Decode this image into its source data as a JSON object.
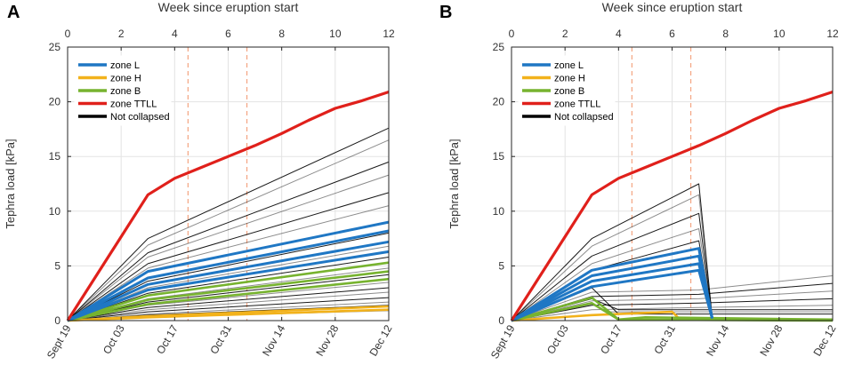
{
  "chart_data": [
    {
      "panel": "A",
      "type": "line",
      "top_axis_title": "Week since eruption start",
      "top_ticks": [
        "0",
        "2",
        "4",
        "6",
        "8",
        "10",
        "12"
      ],
      "top_tick_values": [
        0,
        2,
        4,
        6,
        8,
        10,
        12
      ],
      "xlim": [
        0,
        12
      ],
      "ylim": [
        0,
        25
      ],
      "y_ticks": [
        "0",
        "5",
        "10",
        "15",
        "20",
        "25"
      ],
      "y_tick_values": [
        0,
        5,
        10,
        15,
        20,
        25
      ],
      "ylabel": "Tephra load [kPa]",
      "date_ticks": [
        "Sept 19",
        "Oct 03",
        "Oct 17",
        "Oct 31",
        "Nov 14",
        "Nov 28",
        "Dec 12"
      ],
      "date_tick_values": [
        0,
        2,
        4,
        6,
        8,
        10,
        12
      ],
      "vlines": [
        4.5,
        6.7
      ],
      "legend": [
        "zone L",
        "zone H",
        "zone B",
        "zone TTLL",
        "Not collapsed"
      ],
      "colors": {
        "zone L": "#1f77c4",
        "zone H": "#f2b21b",
        "zone B": "#77b32f",
        "zone TTLL": "#e0201b",
        "Not collapsed": "#000000",
        "vline": "#f4a582"
      },
      "series": [
        {
          "name": "zone TTLL",
          "x": [
            0,
            3,
            4,
            5,
            6,
            7,
            8,
            9,
            10,
            11,
            12
          ],
          "y": [
            0,
            11.5,
            13.0,
            14.0,
            15.0,
            16.0,
            17.1,
            18.3,
            19.4,
            20.1,
            20.9
          ]
        },
        {
          "name": "zone L",
          "x": [
            0,
            3,
            12
          ],
          "y": [
            0,
            4.5,
            9.0
          ]
        },
        {
          "name": "zone L",
          "x": [
            0,
            3,
            12
          ],
          "y": [
            0,
            3.9,
            8.2
          ]
        },
        {
          "name": "zone L",
          "x": [
            0,
            3,
            12
          ],
          "y": [
            0,
            3.3,
            7.2
          ]
        },
        {
          "name": "zone L",
          "x": [
            0,
            3,
            12
          ],
          "y": [
            0,
            2.8,
            6.3
          ]
        },
        {
          "name": "zone B",
          "x": [
            0,
            3,
            12
          ],
          "y": [
            0,
            2.3,
            5.3
          ]
        },
        {
          "name": "zone B",
          "x": [
            0,
            3,
            12
          ],
          "y": [
            0,
            1.9,
            4.5
          ]
        },
        {
          "name": "zone B",
          "x": [
            0,
            3,
            12
          ],
          "y": [
            0,
            1.5,
            3.8
          ]
        },
        {
          "name": "zone H",
          "x": [
            0,
            3,
            12
          ],
          "y": [
            0,
            0.4,
            1.3
          ]
        },
        {
          "name": "zone H",
          "x": [
            0,
            3,
            12
          ],
          "y": [
            0,
            0.3,
            1.0
          ]
        },
        {
          "name": "Not collapsed",
          "x": [
            0,
            3,
            12
          ],
          "y": [
            0,
            7.5,
            17.6
          ]
        },
        {
          "name": "Not collapsed",
          "x": [
            0,
            3,
            12
          ],
          "y": [
            0,
            6.9,
            16.5
          ]
        },
        {
          "name": "Not collapsed",
          "x": [
            0,
            3,
            12
          ],
          "y": [
            0,
            6.2,
            14.5
          ]
        },
        {
          "name": "Not collapsed",
          "x": [
            0,
            3,
            12
          ],
          "y": [
            0,
            5.8,
            13.3
          ]
        },
        {
          "name": "Not collapsed",
          "x": [
            0,
            3,
            12
          ],
          "y": [
            0,
            5.2,
            11.7
          ]
        },
        {
          "name": "Not collapsed",
          "x": [
            0,
            3,
            12
          ],
          "y": [
            0,
            4.8,
            10.5
          ]
        },
        {
          "name": "Not collapsed",
          "x": [
            0,
            3,
            12
          ],
          "y": [
            0,
            3.6,
            8.0
          ]
        },
        {
          "name": "Not collapsed",
          "x": [
            0,
            3,
            12
          ],
          "y": [
            0,
            3.0,
            6.8
          ]
        },
        {
          "name": "Not collapsed",
          "x": [
            0,
            3,
            12
          ],
          "y": [
            0,
            2.5,
            5.8
          ]
        },
        {
          "name": "Not collapsed",
          "x": [
            0,
            3,
            12
          ],
          "y": [
            0,
            2.0,
            4.8
          ]
        },
        {
          "name": "Not collapsed",
          "x": [
            0,
            3,
            12
          ],
          "y": [
            0,
            1.7,
            4.2
          ]
        },
        {
          "name": "Not collapsed",
          "x": [
            0,
            3,
            12
          ],
          "y": [
            0,
            1.4,
            3.5
          ]
        },
        {
          "name": "Not collapsed",
          "x": [
            0,
            3,
            12
          ],
          "y": [
            0,
            1.2,
            3.0
          ]
        },
        {
          "name": "Not collapsed",
          "x": [
            0,
            3,
            12
          ],
          "y": [
            0,
            1.0,
            2.6
          ]
        },
        {
          "name": "Not collapsed",
          "x": [
            0,
            3,
            12
          ],
          "y": [
            0,
            0.8,
            2.1
          ]
        },
        {
          "name": "Not collapsed",
          "x": [
            0,
            3,
            12
          ],
          "y": [
            0,
            0.6,
            1.7
          ]
        },
        {
          "name": "Not collapsed",
          "x": [
            0,
            3,
            12
          ],
          "y": [
            0,
            0.5,
            1.4
          ]
        },
        {
          "name": "Not collapsed",
          "x": [
            0,
            3,
            12
          ],
          "y": [
            0,
            0.3,
            0.9
          ]
        }
      ]
    },
    {
      "panel": "B",
      "type": "line",
      "top_axis_title": "Week since eruption start",
      "top_ticks": [
        "0",
        "2",
        "4",
        "6",
        "8",
        "10",
        "12"
      ],
      "top_tick_values": [
        0,
        2,
        4,
        6,
        8,
        10,
        12
      ],
      "xlim": [
        0,
        12
      ],
      "ylim": [
        0,
        25
      ],
      "y_ticks": [
        "0",
        "5",
        "10",
        "15",
        "20",
        "25"
      ],
      "y_tick_values": [
        0,
        5,
        10,
        15,
        20,
        25
      ],
      "ylabel": "Tephra load [kPa]",
      "date_ticks": [
        "Sept 19",
        "Oct 03",
        "Oct 17",
        "Oct 31",
        "Nov 14",
        "Nov 28",
        "Dec 12"
      ],
      "date_tick_values": [
        0,
        2,
        4,
        6,
        8,
        10,
        12
      ],
      "vlines": [
        4.5,
        6.7
      ],
      "legend": [
        "zone L",
        "zone H",
        "zone B",
        "zone TTLL",
        "Not collapsed"
      ],
      "colors": {
        "zone L": "#1f77c4",
        "zone H": "#f2b21b",
        "zone B": "#77b32f",
        "zone TTLL": "#e0201b",
        "Not collapsed": "#000000",
        "vline": "#f4a582"
      },
      "series": [
        {
          "name": "zone TTLL",
          "x": [
            0,
            3,
            4,
            5,
            6,
            7,
            8,
            9,
            10,
            11,
            12
          ],
          "y": [
            0,
            11.5,
            13.0,
            14.0,
            15.0,
            16.0,
            17.1,
            18.3,
            19.4,
            20.1,
            20.9
          ]
        },
        {
          "name": "Not collapsed",
          "x": [
            0,
            3,
            7,
            7.5
          ],
          "y": [
            0,
            7.5,
            12.5,
            0.3
          ]
        },
        {
          "name": "Not collapsed",
          "x": [
            0,
            3,
            7,
            7.5
          ],
          "y": [
            0,
            6.8,
            11.5,
            0.3
          ]
        },
        {
          "name": "Not collapsed",
          "x": [
            0,
            3,
            7,
            7.5
          ],
          "y": [
            0,
            5.9,
            9.8,
            0.3
          ]
        },
        {
          "name": "Not collapsed",
          "x": [
            0,
            3,
            7,
            7.5
          ],
          "y": [
            0,
            5.2,
            8.4,
            0.3
          ]
        },
        {
          "name": "Not collapsed",
          "x": [
            0,
            3,
            7,
            7.5
          ],
          "y": [
            0,
            4.6,
            7.3,
            0.3
          ]
        },
        {
          "name": "Not collapsed",
          "x": [
            0,
            3,
            7,
            12
          ],
          "y": [
            0,
            2.6,
            2.8,
            4.1
          ]
        },
        {
          "name": "Not collapsed",
          "x": [
            0,
            3,
            7,
            12
          ],
          "y": [
            0,
            2.2,
            2.4,
            3.4
          ]
        },
        {
          "name": "Not collapsed",
          "x": [
            0,
            3,
            7,
            12
          ],
          "y": [
            0,
            1.8,
            2.0,
            2.7
          ]
        },
        {
          "name": "Not collapsed",
          "x": [
            0,
            3,
            7,
            12
          ],
          "y": [
            0,
            1.4,
            1.6,
            2.0
          ]
        },
        {
          "name": "Not collapsed",
          "x": [
            0,
            3,
            7,
            12
          ],
          "y": [
            0,
            1.0,
            1.2,
            1.4
          ]
        },
        {
          "name": "Not collapsed",
          "x": [
            0,
            3,
            4,
            12
          ],
          "y": [
            0,
            2.0,
            1.0,
            1.0
          ]
        },
        {
          "name": "Not collapsed",
          "x": [
            0,
            3,
            3.5,
            12
          ],
          "y": [
            0,
            1.5,
            0.8,
            0.8
          ]
        },
        {
          "name": "Not collapsed",
          "x": [
            0,
            3,
            4,
            12
          ],
          "y": [
            0,
            3.0,
            0.6,
            0.6
          ]
        },
        {
          "name": "zone L",
          "x": [
            0,
            3,
            7,
            7.5
          ],
          "y": [
            0,
            4.6,
            6.6,
            0.2
          ]
        },
        {
          "name": "zone L",
          "x": [
            0,
            3,
            7,
            7.5
          ],
          "y": [
            0,
            4.1,
            5.9,
            0.2
          ]
        },
        {
          "name": "zone L",
          "x": [
            0,
            3,
            7,
            7.5
          ],
          "y": [
            0,
            3.6,
            5.2,
            0.2
          ]
        },
        {
          "name": "zone L",
          "x": [
            0,
            3,
            7,
            7.5
          ],
          "y": [
            0,
            3.1,
            4.6,
            0.2
          ]
        },
        {
          "name": "zone H",
          "x": [
            0,
            3,
            6,
            6.3,
            12
          ],
          "y": [
            0,
            0.5,
            0.8,
            0.1,
            0.1
          ]
        },
        {
          "name": "zone B",
          "x": [
            0,
            3,
            4,
            5,
            12
          ],
          "y": [
            0,
            2.1,
            0.1,
            0.3,
            0.1
          ]
        },
        {
          "name": "zone B",
          "x": [
            0,
            3,
            4,
            12
          ],
          "y": [
            0,
            1.6,
            0.1,
            0.0
          ]
        }
      ]
    }
  ]
}
